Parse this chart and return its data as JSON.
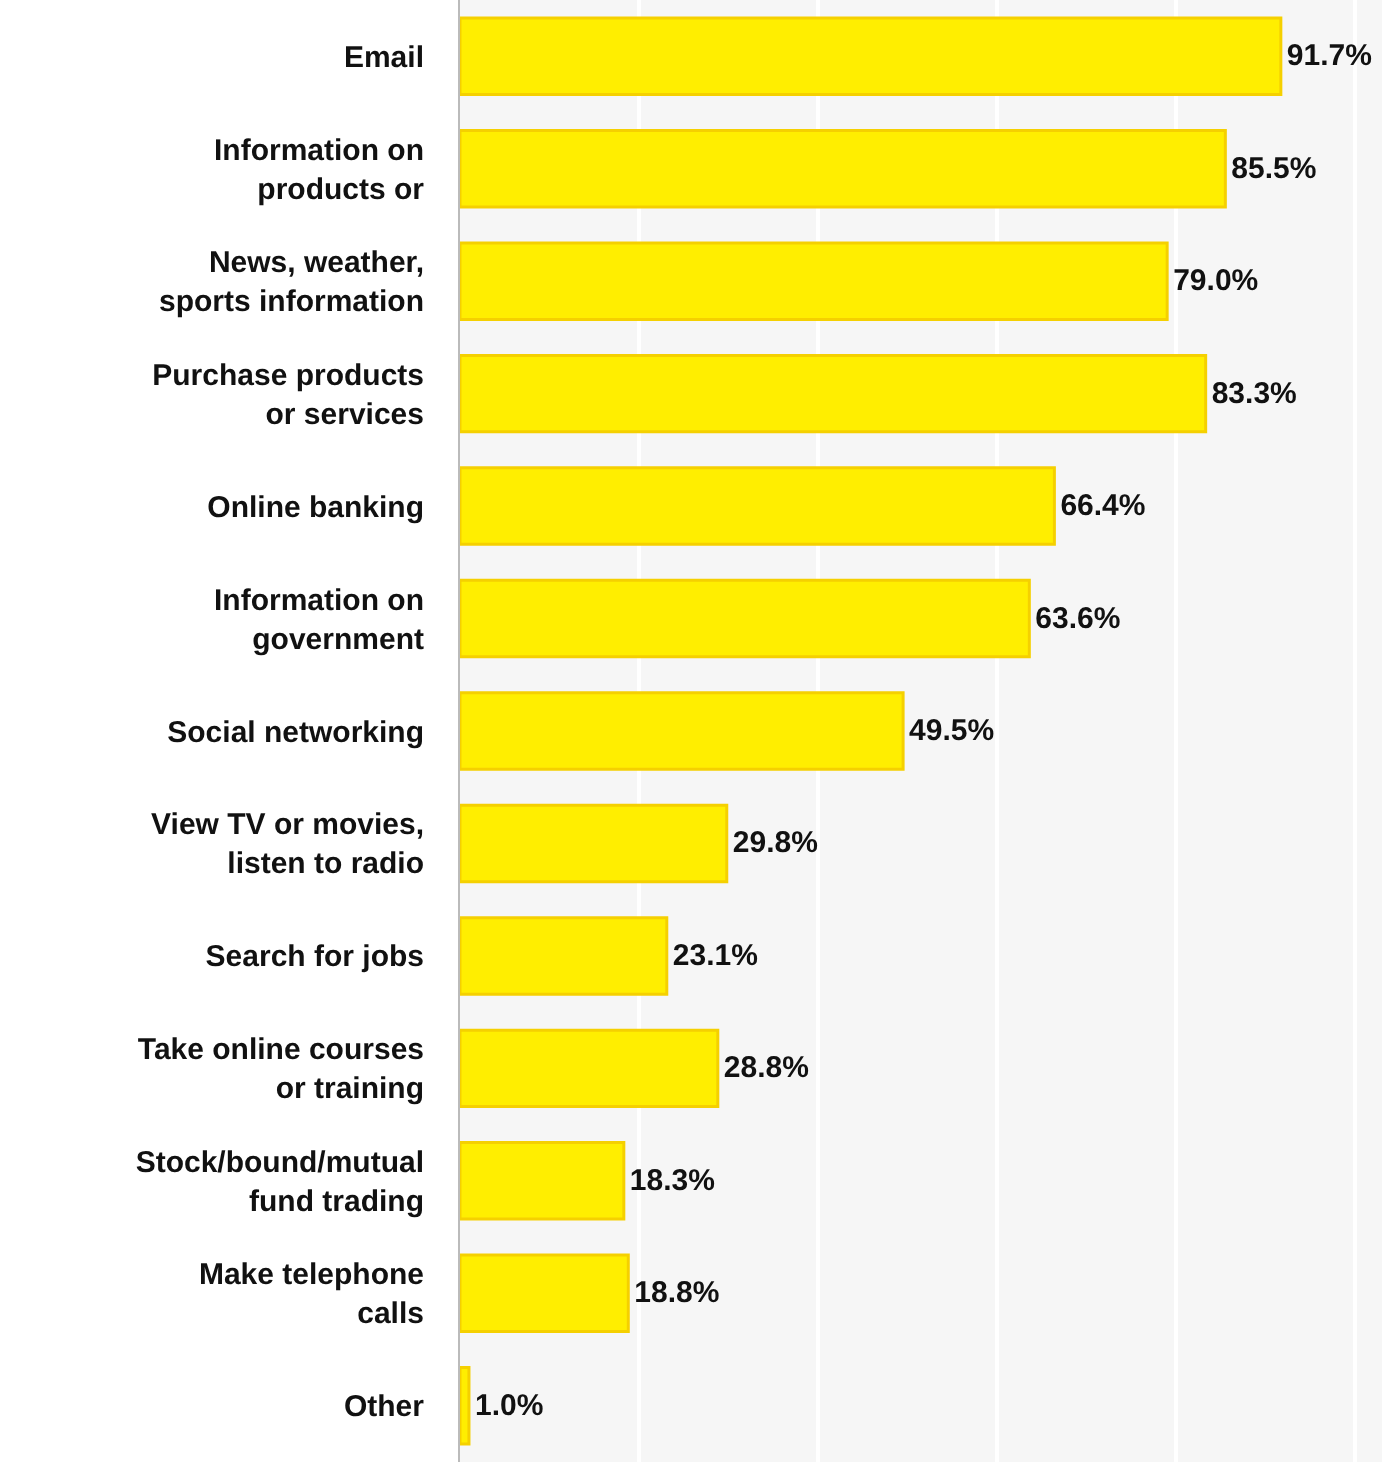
{
  "chart_data": {
    "type": "bar",
    "orientation": "horizontal",
    "categories": [
      "Email",
      "Information on products or",
      "News, weather, sports information",
      "Purchase products or services",
      "Online banking",
      "Information on government",
      "Social networking",
      "View TV or movies, listen to radio",
      "Search for jobs",
      "Take online courses or training",
      "Stock/bound/mutual fund trading",
      "Make telephone calls",
      "Other"
    ],
    "values": [
      91.7,
      85.5,
      79.0,
      83.3,
      66.4,
      63.6,
      49.5,
      29.8,
      23.1,
      28.8,
      18.3,
      18.8,
      1.0
    ],
    "value_labels": [
      "91.7%",
      "85.5%",
      "79.0%",
      "83.3%",
      "66.4%",
      "63.6%",
      "49.5%",
      "29.8%",
      "23.1%",
      "28.8%",
      "18.3%",
      "18.8%",
      "1.0%"
    ],
    "color": "#ffee00",
    "xlim": [
      0,
      103
    ],
    "xticks": [
      {
        "value": 0,
        "label": null
      },
      {
        "value": 20,
        "label": null
      },
      {
        "value": 40,
        "label": null
      },
      {
        "value": 60,
        "label": null
      },
      {
        "value": 80,
        "label": null
      },
      {
        "value": 100,
        "label": null
      }
    ],
    "grid": "x",
    "legend": false
  }
}
